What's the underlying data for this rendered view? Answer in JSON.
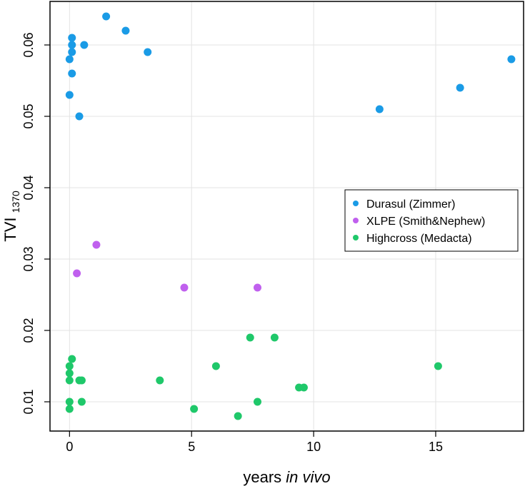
{
  "chart_data": {
    "type": "scatter",
    "title": "",
    "xlabel": "years",
    "xlabel_italic": "in vivo",
    "ylabel": "TVI",
    "ylabel_subscript": "1370",
    "xlim": [
      -0.8,
      18.6
    ],
    "ylim": [
      0.0059,
      0.0661
    ],
    "x_ticks": [
      0,
      5,
      10,
      15
    ],
    "x_tick_labels": [
      "0",
      "5",
      "10",
      "15"
    ],
    "y_ticks": [
      0.01,
      0.02,
      0.03,
      0.04,
      0.05,
      0.06
    ],
    "y_tick_labels": [
      "0.01",
      "0.02",
      "0.03",
      "0.04",
      "0.05",
      "0.06"
    ],
    "grid": true,
    "legend_position": "right-middle",
    "series": [
      {
        "name": "Durasul (Zimmer)",
        "color": "#1a9be6",
        "x": [
          1.5,
          2.3,
          0.1,
          0.1,
          0.6,
          0.1,
          3.2,
          0.0,
          0.1,
          0.0,
          0.4,
          12.7,
          16.0,
          18.1
        ],
        "y": [
          0.064,
          0.062,
          0.061,
          0.06,
          0.06,
          0.059,
          0.059,
          0.058,
          0.056,
          0.053,
          0.05,
          0.051,
          0.054,
          0.058
        ]
      },
      {
        "name": "XLPE (Smith&Nephew)",
        "color": "#c060ee",
        "x": [
          1.1,
          0.3,
          4.7,
          7.7
        ],
        "y": [
          0.032,
          0.028,
          0.026,
          0.026
        ]
      },
      {
        "name": "Highcross (Medacta)",
        "color": "#1fc86a",
        "x": [
          0.1,
          0.0,
          0.0,
          0.0,
          0.4,
          0.5,
          0.0,
          0.0,
          0.5,
          3.7,
          5.1,
          6.0,
          6.9,
          7.4,
          7.7,
          8.4,
          9.4,
          9.6,
          15.1
        ],
        "y": [
          0.016,
          0.015,
          0.014,
          0.013,
          0.013,
          0.013,
          0.01,
          0.009,
          0.01,
          0.013,
          0.009,
          0.015,
          0.008,
          0.019,
          0.01,
          0.019,
          0.012,
          0.012,
          0.015
        ]
      }
    ]
  }
}
